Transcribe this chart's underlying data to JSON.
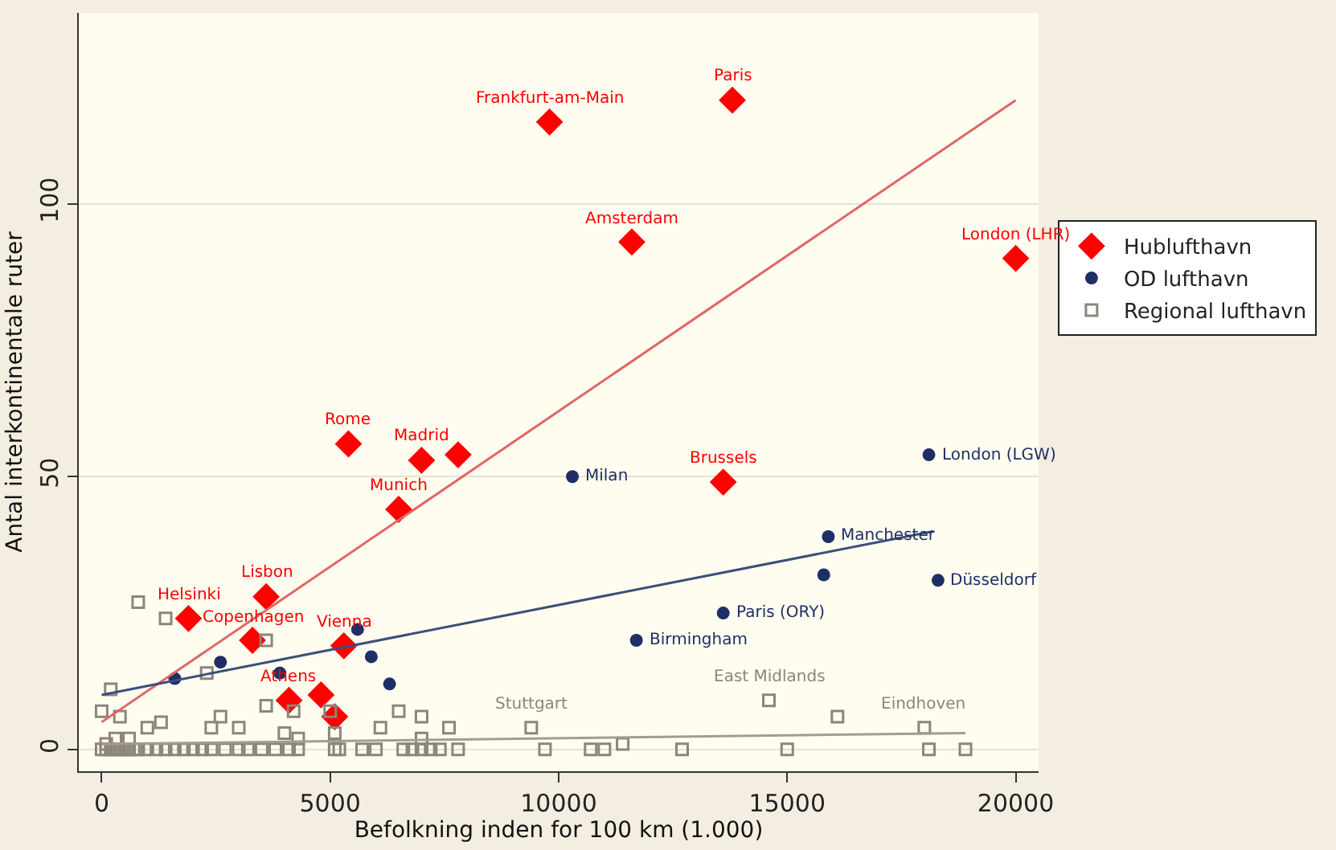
{
  "chart_data": {
    "type": "scatter",
    "xlabel": "Befolkning inden for 100 km (1.000)",
    "ylabel": "Antal interkontinentale ruter",
    "xlim": [
      -500,
      20500
    ],
    "ylim": [
      -4,
      135
    ],
    "xticks": [
      0,
      5000,
      10000,
      15000,
      20000
    ],
    "yticks": [
      0,
      50,
      100
    ],
    "grid": "y",
    "legend": "right",
    "series": [
      {
        "name": "Hublufthavn",
        "color": "#ff0000",
        "marker": "diamond",
        "x": [
          9800,
          13800,
          11600,
          20000,
          5400,
          7000,
          7800,
          6500,
          13600,
          3600,
          1900,
          3300,
          5300,
          4100,
          4800,
          5100
        ],
        "values": [
          115,
          119,
          93,
          90,
          56,
          53,
          54,
          44,
          49,
          28,
          24,
          20,
          19,
          9,
          10,
          6
        ]
      },
      {
        "name": "OD lufthavn",
        "color": "#1f2f66",
        "marker": "circle",
        "x": [
          10300,
          18100,
          15900,
          15800,
          18300,
          13600,
          11700,
          5600,
          5900,
          6300,
          1600,
          2600,
          3900
        ],
        "values": [
          50,
          54,
          39,
          32,
          31,
          25,
          20,
          22,
          17,
          12,
          13,
          16,
          14
        ]
      },
      {
        "name": "Regional lufthavn",
        "color": "#8c857c",
        "marker": "square",
        "x": [
          800,
          1400,
          3600,
          200,
          0,
          400,
          1000,
          1300,
          2300,
          2600,
          2400,
          3000,
          3600,
          4000,
          4200,
          4300,
          5000,
          5100,
          6100,
          6500,
          7000,
          7600,
          7000,
          9400,
          11400,
          14600,
          16100,
          18000,
          12700,
          15000,
          18100,
          18900,
          0,
          100,
          200,
          300,
          400,
          500,
          600,
          700,
          800,
          1000,
          1200,
          1400,
          1600,
          1800,
          2000,
          2200,
          2400,
          2700,
          3000,
          3200,
          3500,
          3800,
          4100,
          4300,
          5100,
          5200,
          5700,
          6000,
          6600,
          6800,
          7000,
          7200,
          7400,
          7800,
          9700,
          10700,
          11000,
          100,
          300,
          600
        ],
        "values": [
          27,
          24,
          20,
          11,
          7,
          6,
          4,
          5,
          14,
          6,
          4,
          4,
          8,
          3,
          7,
          2,
          7,
          3,
          4,
          7,
          6,
          4,
          2,
          4,
          1,
          9,
          6,
          4,
          0,
          0,
          0,
          0,
          0,
          0,
          0,
          0,
          0,
          0,
          0,
          0,
          0,
          0,
          0,
          0,
          0,
          0,
          0,
          0,
          0,
          0,
          0,
          0,
          0,
          0,
          0,
          0,
          0,
          0,
          0,
          0,
          0,
          0,
          0,
          0,
          0,
          0,
          0,
          0,
          0,
          1,
          2,
          2
        ]
      },
      {
        "type": "line",
        "color": "#e06666",
        "x": [
          0,
          20000
        ],
        "values": [
          5,
          119
        ]
      },
      {
        "type": "line",
        "color": "#3a4f7a",
        "x": [
          0,
          18200
        ],
        "values": [
          10,
          40
        ]
      },
      {
        "type": "line",
        "color": "#a39c92",
        "x": [
          0,
          18900
        ],
        "values": [
          1,
          3
        ]
      }
    ],
    "annotations": [
      {
        "text": "Frankfurt-am-Main",
        "x": 9800,
        "y": 115
      },
      {
        "text": "Paris",
        "x": 13800,
        "y": 119
      },
      {
        "text": "Amsterdam",
        "x": 11600,
        "y": 93
      },
      {
        "text": "London (LHR)",
        "x": 20000,
        "y": 90
      },
      {
        "text": "Rome",
        "x": 5400,
        "y": 56
      },
      {
        "text": "Madrid",
        "x": 7000,
        "y": 53
      },
      {
        "text": "Munich",
        "x": 6500,
        "y": 44
      },
      {
        "text": "Brussels",
        "x": 13600,
        "y": 49
      },
      {
        "text": "Lisbon",
        "x": 3600,
        "y": 28
      },
      {
        "text": "Helsinki",
        "x": 1900,
        "y": 24
      },
      {
        "text": "Copenhagen",
        "x": 3300,
        "y": 20
      },
      {
        "text": "Vienna",
        "x": 5300,
        "y": 19
      },
      {
        "text": "Athens",
        "x": 4100,
        "y": 9
      },
      {
        "text": "Milan",
        "x": 10300,
        "y": 50
      },
      {
        "text": "London (LGW)",
        "x": 18100,
        "y": 54
      },
      {
        "text": "Manchester",
        "x": 15900,
        "y": 39
      },
      {
        "text": "Düsseldorf",
        "x": 18300,
        "y": 31
      },
      {
        "text": "Paris (ORY)",
        "x": 13600,
        "y": 25
      },
      {
        "text": "Birmingham",
        "x": 11700,
        "y": 20
      },
      {
        "text": "Stuttgart",
        "x": 9400,
        "y": 4
      },
      {
        "text": "East Midlands",
        "x": 14600,
        "y": 9
      },
      {
        "text": "Eindhoven",
        "x": 18000,
        "y": 4
      }
    ]
  }
}
